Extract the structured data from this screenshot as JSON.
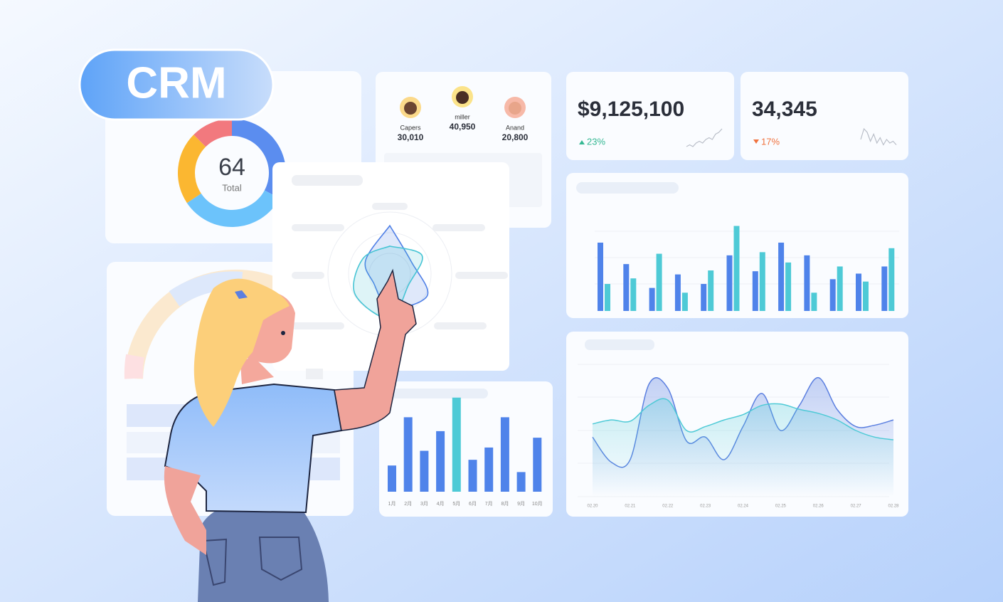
{
  "badge": "CRM",
  "donut": {
    "center": "64",
    "label": "Total",
    "segments": [
      {
        "value": 21,
        "color": "#5b8def"
      },
      {
        "value": 21,
        "color": "#6cc3fb"
      },
      {
        "value": 14,
        "color": "#fbb731"
      },
      {
        "value": 8,
        "color": "#f2797e"
      }
    ]
  },
  "leaders": [
    {
      "name": "Capers",
      "value": "30,010"
    },
    {
      "name": "miller",
      "value": "40,950"
    },
    {
      "name": "Anand",
      "value": "20,800"
    }
  ],
  "kpis": [
    {
      "value": "$9,125,100",
      "change": "23%",
      "color": "#35b893",
      "spark": [
        2,
        3,
        2,
        4,
        5,
        4,
        6,
        7,
        6,
        9,
        10,
        12
      ]
    },
    {
      "value": "34,345",
      "change": "17%",
      "color": "#f0733f",
      "spark": [
        6,
        12,
        10,
        5,
        9,
        4,
        7,
        3,
        6,
        4,
        5,
        3
      ]
    }
  ],
  "pair_bars": {
    "ylim": [
      0,
      120
    ],
    "series": [
      {
        "color": "#4f83ea",
        "values": [
          86,
          59,
          29,
          46,
          34,
          70,
          50,
          86,
          70,
          40,
          47,
          56
        ]
      },
      {
        "color": "#4ecad6",
        "values": [
          34,
          41,
          72,
          23,
          51,
          107,
          74,
          61,
          23,
          56,
          37,
          79
        ]
      }
    ]
  },
  "month_bars": {
    "ylim": [
      0,
      120
    ],
    "categories": [
      "1月",
      "2月",
      "3月",
      "4月",
      "5月",
      "6月",
      "7月",
      "8月",
      "9月",
      "10月"
    ],
    "values": [
      32,
      91,
      50,
      74,
      115,
      39,
      54,
      91,
      24,
      66
    ],
    "colors": [
      "#4f83ea",
      "#4f83ea",
      "#4f83ea",
      "#4f83ea",
      "#4ecad6",
      "#4f83ea",
      "#4f83ea",
      "#4f83ea",
      "#4f83ea",
      "#4f83ea"
    ]
  },
  "lines": {
    "ylim": [
      0,
      100
    ],
    "categories": [
      "02.20",
      null,
      "02.21",
      null,
      "02.22",
      null,
      "02.23",
      null,
      "02.24",
      null,
      "02.25",
      null,
      "02.26",
      null,
      "02.27",
      null,
      "02.28"
    ],
    "series": [
      {
        "color": "#5b7fe0",
        "values": [
          45,
          26,
          28,
          85,
          82,
          42,
          45,
          28,
          53,
          78,
          50,
          69,
          90,
          66,
          53,
          54,
          58
        ]
      },
      {
        "color": "#4ecad6",
        "values": [
          55,
          58,
          57,
          69,
          73,
          50,
          53,
          58,
          62,
          69,
          70,
          66,
          63,
          58,
          50,
          45,
          43
        ]
      }
    ]
  },
  "radar": {
    "max": 100,
    "series": [
      {
        "color": "#4f7fe6",
        "values": [
          78,
          40,
          70,
          55,
          30,
          45
        ]
      },
      {
        "color": "#46c4d4",
        "values": [
          45,
          60,
          35,
          72,
          65,
          50
        ]
      }
    ]
  }
}
